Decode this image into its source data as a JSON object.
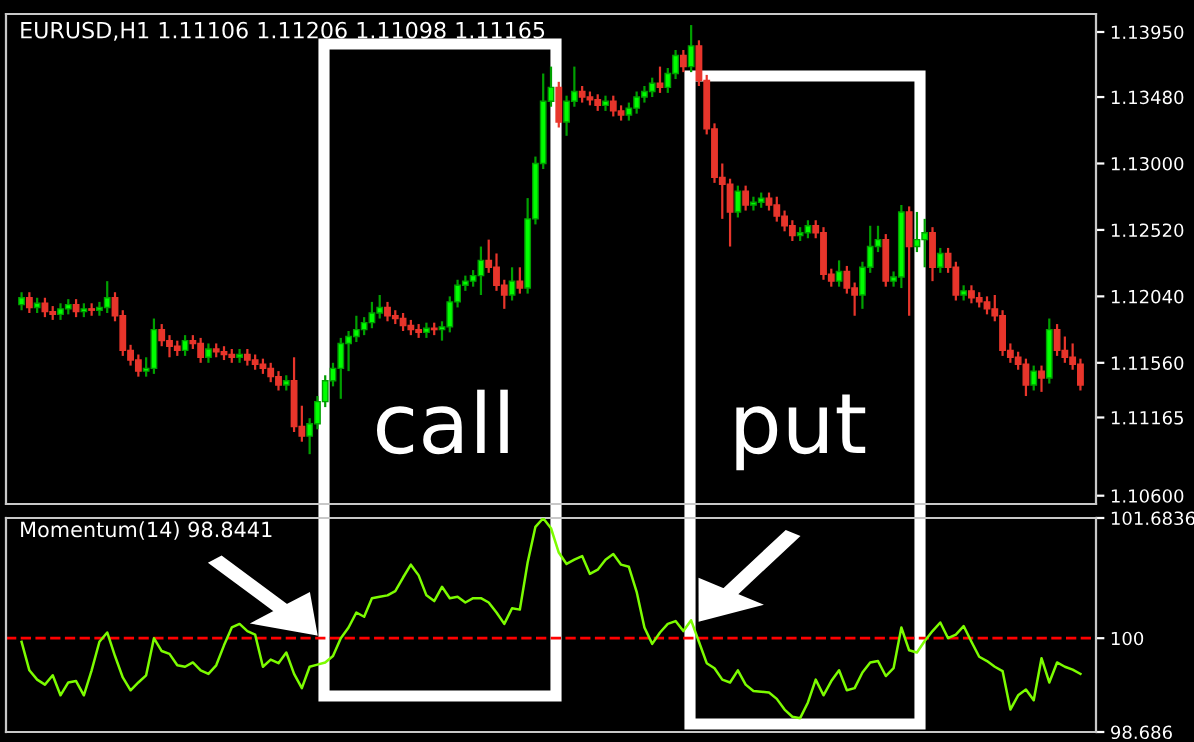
{
  "chart_data": [
    {
      "type": "candlestick",
      "title": "EURUSD,H1 1.11106 1.11206 1.11098 1.11165",
      "categories": [
        null,
        null,
        null,
        null,
        null,
        null,
        null,
        null,
        null,
        null,
        null,
        null,
        null,
        null,
        null,
        null,
        null,
        null,
        null,
        null,
        null,
        null,
        null,
        null,
        null,
        null,
        null,
        null,
        null,
        null,
        null,
        null,
        null,
        null,
        null,
        null,
        null,
        null,
        null,
        null,
        null,
        null,
        null,
        null,
        null,
        null,
        null,
        null,
        null,
        null,
        null,
        null,
        null,
        null,
        null,
        null,
        null,
        null,
        null,
        null,
        null,
        null,
        null,
        null,
        null,
        null,
        null,
        null,
        null,
        null,
        null,
        null,
        null,
        null,
        null,
        null,
        null,
        null,
        null,
        null,
        null,
        null,
        null,
        null,
        null,
        null,
        null,
        null,
        null,
        null,
        null,
        null,
        null,
        null,
        null,
        null,
        null,
        null,
        null,
        null,
        null,
        null,
        null,
        null,
        null,
        null,
        null,
        null,
        null,
        null,
        null,
        null,
        null,
        null,
        null,
        null,
        null,
        null,
        null,
        null,
        null,
        null,
        null,
        null,
        null,
        null,
        null,
        null,
        null,
        null,
        null,
        null,
        null,
        null,
        null,
        null,
        null
      ],
      "ohlc": [
        [
          1.1198,
          1.1207,
          1.1194,
          1.1203
        ],
        [
          1.1203,
          1.1207,
          1.1192,
          1.1196
        ],
        [
          1.1196,
          1.1203,
          1.1192,
          1.1199
        ],
        [
          1.1199,
          1.1203,
          1.1189,
          1.1193
        ],
        [
          1.1193,
          1.1197,
          1.1187,
          1.1191
        ],
        [
          1.1191,
          1.1199,
          1.1187,
          1.1195
        ],
        [
          1.1195,
          1.1202,
          1.1191,
          1.1198
        ],
        [
          1.1198,
          1.1202,
          1.1189,
          1.1193
        ],
        [
          1.1193,
          1.1199,
          1.1189,
          1.1195
        ],
        [
          1.1195,
          1.1199,
          1.119,
          1.1194
        ],
        [
          1.1194,
          1.12,
          1.119,
          1.1196
        ],
        [
          1.1196,
          1.1215,
          1.1192,
          1.1203
        ],
        [
          1.1203,
          1.1207,
          1.1186,
          1.119
        ],
        [
          1.119,
          1.1194,
          1.1161,
          1.1165
        ],
        [
          1.1165,
          1.1169,
          1.1154,
          1.1158
        ],
        [
          1.1158,
          1.1162,
          1.1146,
          1.115
        ],
        [
          1.115,
          1.116,
          1.1146,
          1.1152
        ],
        [
          1.1152,
          1.1188,
          1.1148,
          1.118
        ],
        [
          1.118,
          1.1184,
          1.1168,
          1.1172
        ],
        [
          1.1172,
          1.1176,
          1.116,
          1.1168
        ],
        [
          1.1168,
          1.1172,
          1.1161,
          1.1165
        ],
        [
          1.1165,
          1.1176,
          1.1161,
          1.1172
        ],
        [
          1.1172,
          1.1176,
          1.1166,
          1.117
        ],
        [
          1.117,
          1.1174,
          1.1156,
          1.116
        ],
        [
          1.116,
          1.117,
          1.1156,
          1.1166
        ],
        [
          1.1166,
          1.117,
          1.116,
          1.1164
        ],
        [
          1.1164,
          1.1168,
          1.1158,
          1.1162
        ],
        [
          1.1162,
          1.1166,
          1.1156,
          1.116
        ],
        [
          1.116,
          1.1166,
          1.1156,
          1.1162
        ],
        [
          1.1162,
          1.1166,
          1.1154,
          1.1158
        ],
        [
          1.1158,
          1.1162,
          1.1151,
          1.1155
        ],
        [
          1.1155,
          1.1159,
          1.1148,
          1.1152
        ],
        [
          1.1152,
          1.1156,
          1.1142,
          1.1146
        ],
        [
          1.1146,
          1.115,
          1.1136,
          1.114
        ],
        [
          1.114,
          1.1147,
          1.1136,
          1.1143
        ],
        [
          1.1143,
          1.116,
          1.1106,
          1.111
        ],
        [
          1.111,
          1.1125,
          1.1099,
          1.1103
        ],
        [
          1.1103,
          1.1116,
          1.109,
          1.1112
        ],
        [
          1.1112,
          1.1132,
          1.1108,
          1.1128
        ],
        [
          1.1128,
          1.1147,
          1.1124,
          1.1143
        ],
        [
          1.1143,
          1.1156,
          1.1139,
          1.1152
        ],
        [
          1.1152,
          1.1174,
          1.113,
          1.117
        ],
        [
          1.117,
          1.1179,
          1.115,
          1.1175
        ],
        [
          1.1175,
          1.119,
          1.1171,
          1.118
        ],
        [
          1.118,
          1.1189,
          1.1176,
          1.1185
        ],
        [
          1.1185,
          1.12,
          1.1181,
          1.1192
        ],
        [
          1.1192,
          1.1205,
          1.1188,
          1.1196
        ],
        [
          1.1196,
          1.12,
          1.1186,
          1.119
        ],
        [
          1.119,
          1.1194,
          1.1184,
          1.1188
        ],
        [
          1.1188,
          1.1192,
          1.1179,
          1.1183
        ],
        [
          1.1183,
          1.1187,
          1.1176,
          1.118
        ],
        [
          1.118,
          1.1184,
          1.1174,
          1.1178
        ],
        [
          1.1178,
          1.1185,
          1.1174,
          1.1181
        ],
        [
          1.1181,
          1.1185,
          1.1176,
          1.118
        ],
        [
          1.118,
          1.1186,
          1.1172,
          1.1182
        ],
        [
          1.1182,
          1.1204,
          1.1178,
          1.12
        ],
        [
          1.12,
          1.1216,
          1.1196,
          1.1212
        ],
        [
          1.1212,
          1.1219,
          1.1208,
          1.1215
        ],
        [
          1.1215,
          1.1223,
          1.1211,
          1.1219
        ],
        [
          1.1219,
          1.124,
          1.1205,
          1.123
        ],
        [
          1.123,
          1.1245,
          1.1221,
          1.1225
        ],
        [
          1.1225,
          1.1235,
          1.1208,
          1.1212
        ],
        [
          1.1212,
          1.1216,
          1.1195,
          1.1205
        ],
        [
          1.1205,
          1.1225,
          1.1201,
          1.1215
        ],
        [
          1.1215,
          1.1225,
          1.1206,
          1.121
        ],
        [
          1.121,
          1.1275,
          1.1206,
          1.126
        ],
        [
          1.126,
          1.1305,
          1.1256,
          1.13
        ],
        [
          1.13,
          1.1365,
          1.1296,
          1.1345
        ],
        [
          1.1345,
          1.137,
          1.1341,
          1.1355
        ],
        [
          1.1355,
          1.1359,
          1.1326,
          1.133
        ],
        [
          1.133,
          1.1349,
          1.132,
          1.1345
        ],
        [
          1.1345,
          1.137,
          1.1341,
          1.1352
        ],
        [
          1.1352,
          1.1356,
          1.1344,
          1.1348
        ],
        [
          1.1348,
          1.1352,
          1.1342,
          1.1346
        ],
        [
          1.1346,
          1.135,
          1.1338,
          1.1342
        ],
        [
          1.1342,
          1.1349,
          1.1338,
          1.1345
        ],
        [
          1.1345,
          1.1349,
          1.1334,
          1.1338
        ],
        [
          1.1338,
          1.1342,
          1.1331,
          1.1335
        ],
        [
          1.1335,
          1.1344,
          1.1331,
          1.134
        ],
        [
          1.134,
          1.1352,
          1.1336,
          1.1348
        ],
        [
          1.1348,
          1.1356,
          1.1344,
          1.1352
        ],
        [
          1.1352,
          1.1362,
          1.1348,
          1.1358
        ],
        [
          1.1358,
          1.137,
          1.1351,
          1.1355
        ],
        [
          1.1355,
          1.1369,
          1.1351,
          1.1365
        ],
        [
          1.1365,
          1.1382,
          1.1361,
          1.1378
        ],
        [
          1.1378,
          1.1382,
          1.1366,
          1.137
        ],
        [
          1.137,
          1.14,
          1.1366,
          1.1385
        ],
        [
          1.1385,
          1.1389,
          1.1356,
          1.136
        ],
        [
          1.136,
          1.1364,
          1.1321,
          1.1325
        ],
        [
          1.1325,
          1.1329,
          1.1286,
          1.129
        ],
        [
          1.129,
          1.13,
          1.126,
          1.1285
        ],
        [
          1.1285,
          1.1289,
          1.124,
          1.1265
        ],
        [
          1.1265,
          1.1284,
          1.1261,
          1.128
        ],
        [
          1.128,
          1.1284,
          1.1266,
          1.127
        ],
        [
          1.127,
          1.1276,
          1.1266,
          1.1272
        ],
        [
          1.1272,
          1.1279,
          1.1268,
          1.1275
        ],
        [
          1.1275,
          1.1279,
          1.1266,
          1.127
        ],
        [
          1.127,
          1.1276,
          1.1258,
          1.1262
        ],
        [
          1.1262,
          1.1266,
          1.1251,
          1.1255
        ],
        [
          1.1255,
          1.1259,
          1.1244,
          1.1248
        ],
        [
          1.1248,
          1.1254,
          1.1244,
          1.125
        ],
        [
          1.125,
          1.1259,
          1.1246,
          1.1255
        ],
        [
          1.1255,
          1.1259,
          1.1246,
          1.125
        ],
        [
          1.125,
          1.1254,
          1.1216,
          1.122
        ],
        [
          1.122,
          1.1224,
          1.1211,
          1.1215
        ],
        [
          1.1215,
          1.123,
          1.1211,
          1.1222
        ],
        [
          1.1222,
          1.1226,
          1.1206,
          1.121
        ],
        [
          1.121,
          1.1214,
          1.119,
          1.1205
        ],
        [
          1.1205,
          1.1229,
          1.1195,
          1.1225
        ],
        [
          1.1225,
          1.1255,
          1.1221,
          1.124
        ],
        [
          1.124,
          1.1255,
          1.1236,
          1.1245
        ],
        [
          1.1245,
          1.1249,
          1.1211,
          1.1215
        ],
        [
          1.1215,
          1.1222,
          1.1211,
          1.1218
        ],
        [
          1.1218,
          1.127,
          1.121,
          1.1265
        ],
        [
          1.1265,
          1.1269,
          1.119,
          1.124
        ],
        [
          1.124,
          1.1265,
          1.1236,
          1.1245
        ],
        [
          1.1245,
          1.126,
          1.1225,
          1.125
        ],
        [
          1.125,
          1.1254,
          1.1215,
          1.1225
        ],
        [
          1.1225,
          1.1239,
          1.1221,
          1.1235
        ],
        [
          1.1235,
          1.1239,
          1.1221,
          1.1225
        ],
        [
          1.1225,
          1.1229,
          1.1201,
          1.1205
        ],
        [
          1.1205,
          1.1212,
          1.1201,
          1.1208
        ],
        [
          1.1208,
          1.1212,
          1.1199,
          1.1203
        ],
        [
          1.1203,
          1.1207,
          1.1196,
          1.12
        ],
        [
          1.12,
          1.1204,
          1.1191,
          1.1195
        ],
        [
          1.1195,
          1.1205,
          1.1186,
          1.119
        ],
        [
          1.119,
          1.1194,
          1.1161,
          1.1165
        ],
        [
          1.1165,
          1.117,
          1.1156,
          1.116
        ],
        [
          1.116,
          1.1164,
          1.1151,
          1.1155
        ],
        [
          1.1155,
          1.1159,
          1.1132,
          1.114
        ],
        [
          1.114,
          1.1154,
          1.1136,
          1.115
        ],
        [
          1.115,
          1.1154,
          1.1135,
          1.1145
        ],
        [
          1.1145,
          1.1188,
          1.1141,
          1.118
        ],
        [
          1.118,
          1.1184,
          1.1161,
          1.1165
        ],
        [
          1.1165,
          1.1175,
          1.1156,
          1.116
        ],
        [
          1.116,
          1.117,
          1.1151,
          1.1155
        ],
        [
          1.1155,
          1.1159,
          1.1136,
          1.114
        ]
      ],
      "ylim": [
        1.1054,
        1.1408
      ],
      "yticks": [
        {
          "value": 1.1395,
          "label": "1.13950"
        },
        {
          "value": 1.1348,
          "label": "1.13480"
        },
        {
          "value": 1.13,
          "label": "1.13000"
        },
        {
          "value": 1.1252,
          "label": "1.12520"
        },
        {
          "value": 1.1204,
          "label": "1.12040"
        },
        {
          "value": 1.1156,
          "label": "1.11560"
        },
        {
          "value": 1.11165,
          "label": "1.11165"
        },
        {
          "value": 1.106,
          "label": "1.10600"
        }
      ],
      "tick_labels": "y",
      "grid": false,
      "legend": false,
      "annotations": [
        "call",
        "put"
      ]
    },
    {
      "type": "line",
      "title": "Momentum(14) 98.8441",
      "categories": [
        null,
        null,
        null,
        null,
        null,
        null,
        null,
        null,
        null,
        null,
        null,
        null,
        null,
        null,
        null,
        null,
        null,
        null,
        null,
        null,
        null,
        null,
        null,
        null,
        null,
        null,
        null,
        null,
        null,
        null,
        null,
        null,
        null,
        null,
        null,
        null,
        null,
        null,
        null,
        null,
        null,
        null,
        null,
        null,
        null,
        null,
        null,
        null,
        null,
        null,
        null,
        null,
        null,
        null,
        null,
        null,
        null,
        null,
        null,
        null,
        null,
        null,
        null,
        null,
        null,
        null,
        null,
        null,
        null,
        null,
        null,
        null,
        null,
        null,
        null,
        null,
        null,
        null,
        null,
        null,
        null,
        null,
        null,
        null,
        null,
        null,
        null,
        null,
        null,
        null,
        null,
        null,
        null,
        null,
        null,
        null,
        null,
        null,
        null,
        null,
        null,
        null,
        null,
        null,
        null,
        null,
        null,
        null,
        null,
        null,
        null,
        null,
        null,
        null,
        null,
        null,
        null,
        null,
        null,
        null,
        null,
        null,
        null,
        null,
        null,
        null,
        null,
        null,
        null,
        null,
        null,
        null,
        null,
        null,
        null,
        null,
        null
      ],
      "series": [
        {
          "color": "#7cfc00",
          "values": [
            99.95,
            99.55,
            99.42,
            99.35,
            99.48,
            99.2,
            99.38,
            99.4,
            99.2,
            99.55,
            99.95,
            100.08,
            99.75,
            99.45,
            99.27,
            99.38,
            99.48,
            100.0,
            99.82,
            99.78,
            99.62,
            99.6,
            99.66,
            99.55,
            99.5,
            99.62,
            99.9,
            100.15,
            100.2,
            100.1,
            100.05,
            99.6,
            99.7,
            99.65,
            99.8,
            99.5,
            99.3,
            99.6,
            99.63,
            99.66,
            99.75,
            100.0,
            100.15,
            100.36,
            100.3,
            100.56,
            100.58,
            100.6,
            100.66,
            100.85,
            101.03,
            100.88,
            100.6,
            100.52,
            100.72,
            100.56,
            100.58,
            100.5,
            100.56,
            100.56,
            100.5,
            100.36,
            100.2,
            100.42,
            100.4,
            101.06,
            101.56,
            101.68,
            101.54,
            101.2,
            101.04,
            101.1,
            101.15,
            100.9,
            100.96,
            101.1,
            101.18,
            101.03,
            101.0,
            100.65,
            100.15,
            99.92,
            100.08,
            100.2,
            100.24,
            100.1,
            100.25,
            99.95,
            99.65,
            99.58,
            99.42,
            99.38,
            99.55,
            99.35,
            99.26,
            99.25,
            99.24,
            99.15,
            99.0,
            98.9,
            98.88,
            99.1,
            99.42,
            99.2,
            99.4,
            99.55,
            99.27,
            99.3,
            99.52,
            99.66,
            99.68,
            99.47,
            99.58,
            100.15,
            99.83,
            99.8,
            99.96,
            100.1,
            100.22,
            100.0,
            100.05,
            100.17,
            99.95,
            99.74,
            99.68,
            99.6,
            99.54,
            99.0,
            99.2,
            99.28,
            99.13,
            99.72,
            99.38,
            99.66,
            99.6,
            99.56,
            99.5
          ]
        }
      ],
      "ylim": [
        98.686,
        101.6836
      ],
      "yticks": [
        101.6836,
        100,
        98.686
      ],
      "ref_lines": [
        {
          "axis": "y",
          "value": 100,
          "color": "#ff0000",
          "line_style": "dashed"
        }
      ],
      "marker": "none",
      "line_style": "solid",
      "tick_labels": "y",
      "grid": false,
      "legend": false
    }
  ]
}
